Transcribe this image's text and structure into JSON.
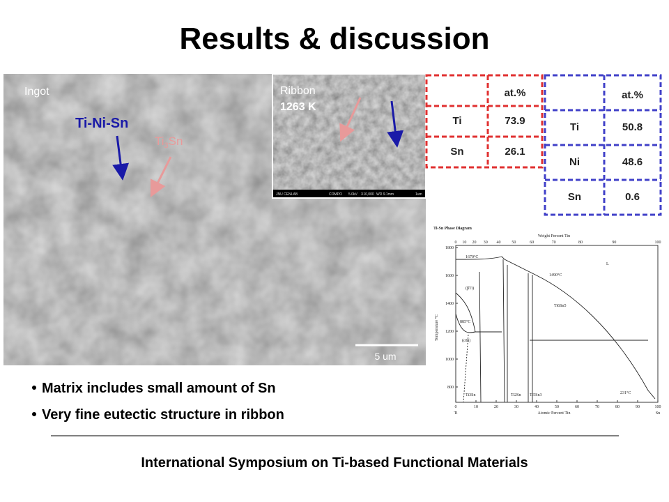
{
  "header": {
    "title": "Results & discussion"
  },
  "ingot": {
    "label": "Ingot",
    "phase1": "Ti-Ni-Sn",
    "phase2": {
      "base": "Ti",
      "sub": "3",
      "rest": "Sn"
    },
    "scale_bar": "5 um"
  },
  "ribbon": {
    "label": "Ribbon",
    "temperature": "1263 K",
    "info_bar": [
      "JNU CENLAB",
      "COMPO",
      "5.0kV",
      "X10,000",
      "WD 9.1mm",
      "1um"
    ]
  },
  "table_red": {
    "header": "at.%",
    "rows": [
      [
        "Ti",
        "73.9"
      ],
      [
        "Sn",
        "26.1"
      ]
    ]
  },
  "table_blue": {
    "header": "at.%",
    "rows": [
      [
        "Ti",
        "50.8"
      ],
      [
        "Ni",
        "48.6"
      ],
      [
        "Sn",
        "0.6"
      ]
    ]
  },
  "phase_diagram": {
    "title": "Ti-Sn Phase Diagram",
    "top_axis": "Weight Percent Tin",
    "bottom_axis": "Atomic Percent Tin",
    "y_axis": "Temperature °C",
    "yticks": [
      "1800",
      "1600",
      "1400",
      "1200",
      "1000",
      "800"
    ],
    "xticks": [
      "0",
      "10",
      "20",
      "30",
      "40",
      "50",
      "60",
      "70",
      "80",
      "90",
      "100"
    ],
    "top_ticks": [
      "0",
      "10",
      "20",
      "30",
      "40",
      "50",
      "60",
      "70",
      "80",
      "90",
      "100"
    ],
    "left_element": "Ti",
    "right_element": "Sn",
    "labels": [
      "L",
      "(βTi)",
      "(αTi)",
      "1670°C",
      "1490°C",
      "885°C",
      "231°C",
      "Ti3Sn",
      "Ti2Sn",
      "Ti5Sn3",
      "Ti6Sn5"
    ]
  },
  "bullets": [
    "Matrix includes small amount of Sn",
    "Very fine eutectic structure in ribbon"
  ],
  "footer": "International Symposium on Ti-based Functional Materials"
}
